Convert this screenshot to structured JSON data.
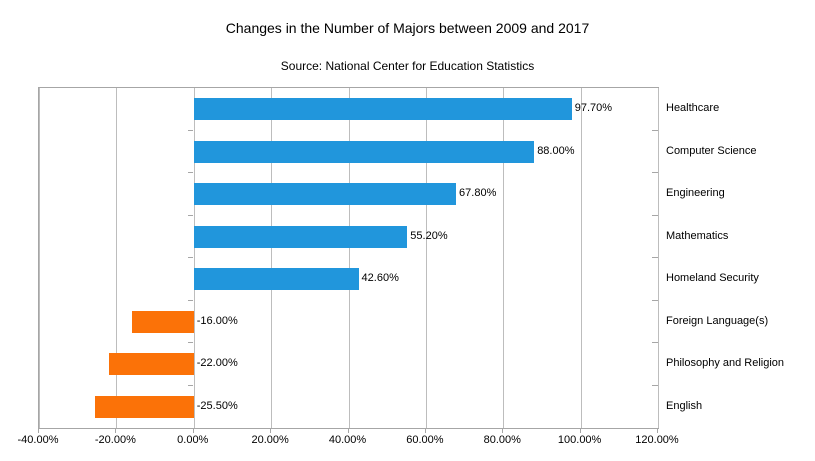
{
  "chart_data": {
    "type": "bar",
    "orientation": "horizontal",
    "title": "Changes in the Number of Majors between 2009 and 2017",
    "subtitle": "Source: National Center for Education Statistics",
    "categories": [
      "Healthcare",
      "Computer Science",
      "Engineering",
      "Mathematics",
      "Homeland Security",
      "Foreign Language(s)",
      "Philosophy and Religion",
      "English"
    ],
    "values": [
      97.7,
      88.0,
      67.8,
      55.2,
      42.6,
      -16.0,
      -22.0,
      -25.5
    ],
    "value_labels": [
      "97.70%",
      "88.00%",
      "67.80%",
      "55.20%",
      "42.60%",
      "-16.00%",
      "-22.00%",
      "-25.50%"
    ],
    "x_ticks": [
      -40,
      -20,
      0,
      20,
      40,
      60,
      80,
      100,
      120
    ],
    "x_tick_labels": [
      "-40.00%",
      "-20.00%",
      "0.00%",
      "20.00%",
      "40.00%",
      "60.00%",
      "80.00%",
      "100.00%",
      "120.00%"
    ],
    "xlim": [
      -40,
      120
    ],
    "grid": "vertical",
    "legend": "none",
    "category_axis_side": "right",
    "colors": {
      "positive_bar": "#2196dc",
      "negative_bar": "#fb7208",
      "gridline": "#bdbdbd",
      "axis": "#a6a6a6",
      "text": "#000000",
      "background": "#ffffff"
    }
  }
}
